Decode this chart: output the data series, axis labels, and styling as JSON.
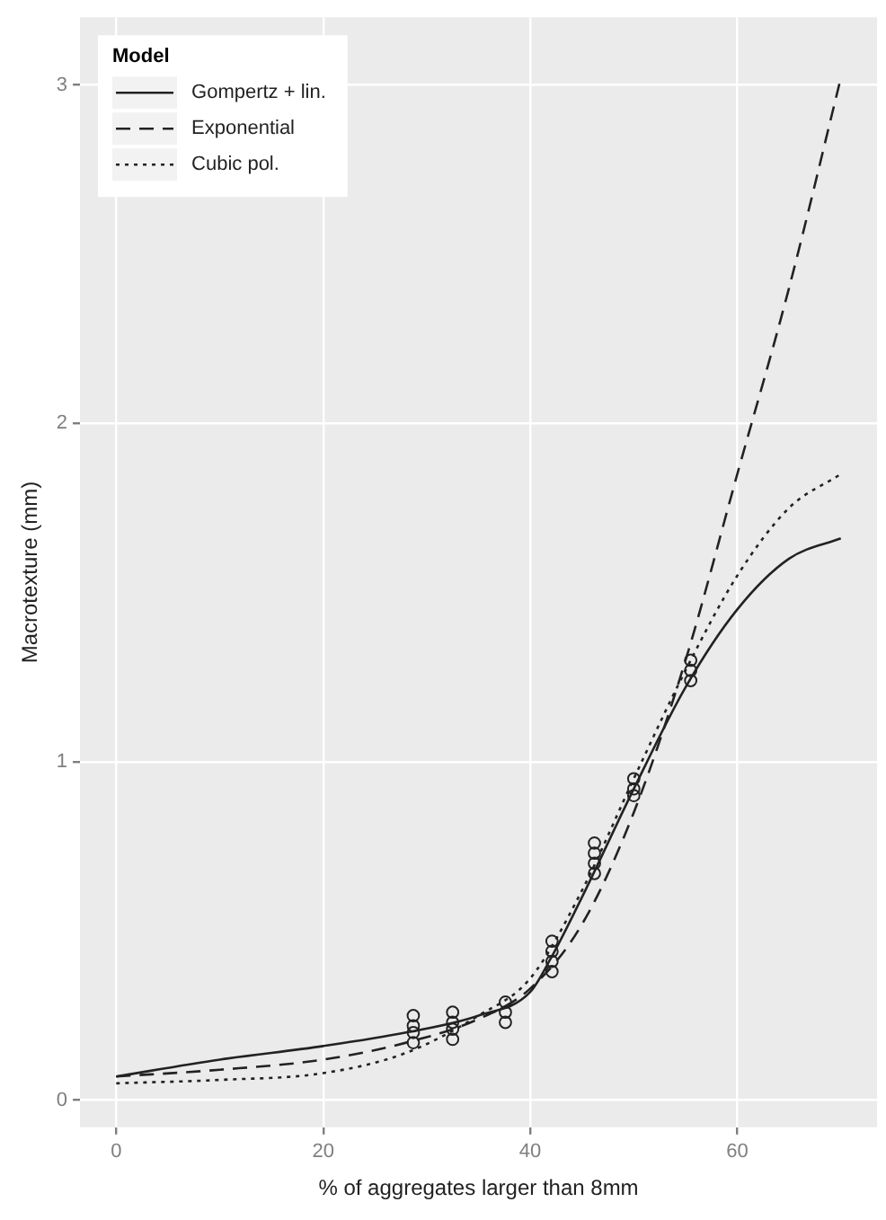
{
  "chart_data": {
    "type": "line",
    "xlabel": "% of aggregates larger than 8mm",
    "ylabel": "Macrotexture (mm)",
    "legend_title": "Model",
    "legend": "top left",
    "grid": true,
    "xlim": [
      -3.5,
      73.5
    ],
    "xticks": [
      0,
      20,
      40,
      60
    ],
    "ylim": [
      -0.08,
      3.2
    ],
    "yticks": [
      0,
      1,
      2,
      3
    ],
    "series": [
      {
        "name": "Gompertz + lin.",
        "line_style": "solid",
        "marker": "none",
        "color": "#222222",
        "x": [
          0,
          10,
          20,
          28,
          35,
          40,
          42,
          45,
          50,
          55,
          60,
          65,
          70
        ],
        "values": [
          0.07,
          0.12,
          0.16,
          0.2,
          0.25,
          0.32,
          0.42,
          0.6,
          0.92,
          1.22,
          1.45,
          1.6,
          1.66
        ]
      },
      {
        "name": "Exponential",
        "line_style": "dashed",
        "marker": "none",
        "color": "#222222",
        "x": [
          0,
          10,
          20,
          28,
          35,
          40,
          45,
          50,
          55,
          60,
          65,
          70
        ],
        "values": [
          0.07,
          0.09,
          0.12,
          0.17,
          0.24,
          0.33,
          0.52,
          0.85,
          1.3,
          1.85,
          2.4,
          3.02
        ]
      },
      {
        "name": "Cubic pol.",
        "line_style": "dotted",
        "marker": "none",
        "color": "#222222",
        "x": [
          0,
          10,
          20,
          28,
          35,
          40,
          45,
          50,
          55,
          60,
          65,
          70
        ],
        "values": [
          0.05,
          0.06,
          0.08,
          0.14,
          0.25,
          0.36,
          0.62,
          0.95,
          1.27,
          1.55,
          1.75,
          1.85
        ]
      },
      {
        "type": "scatter",
        "marker": "circle",
        "color": "#222222",
        "x": [
          28.7,
          28.7,
          28.7,
          28.7,
          32.5,
          32.5,
          32.5,
          32.5,
          37.6,
          37.6,
          37.6,
          42.1,
          42.1,
          42.1,
          42.1,
          46.2,
          46.2,
          46.2,
          46.2,
          50,
          50,
          50,
          55.5,
          55.5,
          55.5
        ],
        "values": [
          0.17,
          0.2,
          0.22,
          0.25,
          0.18,
          0.21,
          0.23,
          0.26,
          0.23,
          0.26,
          0.29,
          0.38,
          0.41,
          0.44,
          0.47,
          0.67,
          0.7,
          0.73,
          0.76,
          0.9,
          0.92,
          0.95,
          1.24,
          1.27,
          1.3
        ]
      }
    ]
  }
}
